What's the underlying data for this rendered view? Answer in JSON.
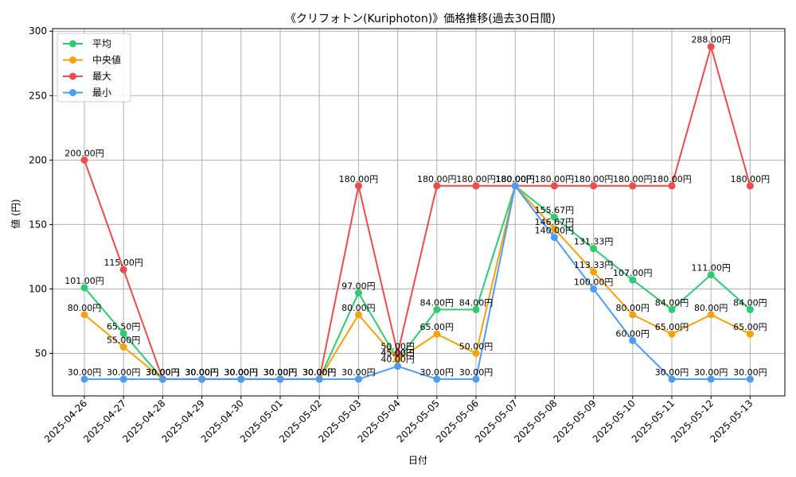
{
  "chart_data": {
    "type": "line",
    "title": "《クリフォトン(Kuriphoton)》価格推移(過去30日間)",
    "xlabel": "日付",
    "ylabel": "値 (円)",
    "ylim": [
      17,
      302
    ],
    "yticks": [
      50,
      100,
      150,
      200,
      250,
      300
    ],
    "grid": true,
    "legend_position": "top-left",
    "value_suffix": "円",
    "categories": [
      "2025-04-26",
      "2025-04-27",
      "2025-04-28",
      "2025-04-29",
      "2025-04-30",
      "2025-05-01",
      "2025-05-02",
      "2025-05-03",
      "2025-05-04",
      "2025-05-05",
      "2025-05-06",
      "2025-05-07",
      "2025-05-08",
      "2025-05-09",
      "2025-05-10",
      "2025-05-11",
      "2025-05-12",
      "2025-05-13"
    ],
    "series": [
      {
        "name": "平均",
        "color": "#2ecc71",
        "values": [
          101,
          65.5,
          30,
          30,
          30,
          30,
          30,
          97,
          45,
          84,
          84,
          180,
          155.67,
          131.33,
          107,
          84,
          111,
          84
        ]
      },
      {
        "name": "中央値",
        "color": "#f5a30a",
        "values": [
          80,
          55,
          30,
          30,
          30,
          30,
          30,
          80,
          45,
          65,
          50,
          180,
          146.67,
          113.33,
          80,
          65,
          80,
          65
        ]
      },
      {
        "name": "最大",
        "color": "#ef4b4b",
        "values": [
          200,
          115,
          30,
          30,
          30,
          30,
          30,
          180,
          50,
          180,
          180,
          180,
          180,
          180,
          180,
          180,
          288,
          180
        ]
      },
      {
        "name": "最小",
        "color": "#4d9cf6",
        "values": [
          30,
          30,
          30,
          30,
          30,
          30,
          30,
          30,
          40,
          30,
          30,
          180,
          140,
          100,
          60,
          30,
          30,
          30
        ]
      }
    ]
  }
}
